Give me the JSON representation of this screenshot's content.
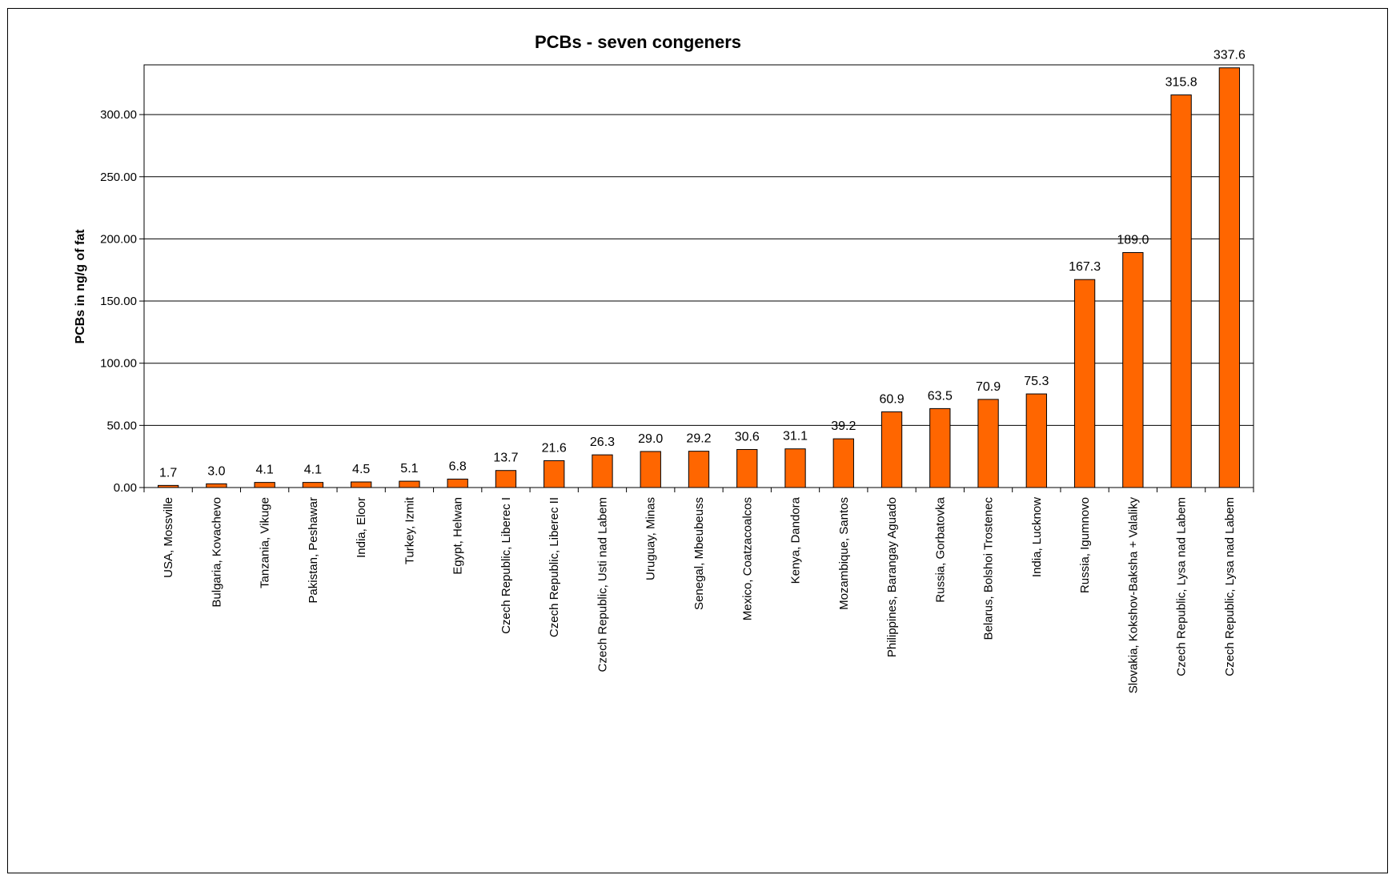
{
  "chart_data": {
    "type": "bar",
    "title": "PCBs - seven congeners",
    "xlabel": "",
    "ylabel": "PCBs in ng/g of fat",
    "ylim": [
      0,
      340
    ],
    "yticks": [
      0,
      50,
      100,
      150,
      200,
      250,
      300
    ],
    "ytick_labels": [
      "0.00",
      "50.00",
      "100.00",
      "150.00",
      "200.00",
      "250.00",
      "300.00"
    ],
    "grid": true,
    "legend": "none",
    "bar_color": "#FF6600",
    "categories": [
      "USA, Mossville",
      "Bulgaria, Kovachevo",
      "Tanzania, Vikuge",
      "Pakistan, Peshawar",
      "India, Eloor",
      "Turkey, Izmit",
      "Egypt, Helwan",
      "Czech Republic, Liberec I",
      "Czech Republic, Liberec II",
      "Czech Republic, Usti nad Labem",
      "Uruguay, Minas",
      "Senegal, Mbeubeuss",
      "Mexico, Coatzacoalcos",
      "Kenya, Dandora",
      "Mozambique, Santos",
      "Philippines, Barangay Aguado",
      "Russia, Gorbatovka",
      "Belarus, Bolshoi Trostenec",
      "India, Lucknow",
      "Russia, Igumnovo",
      "Slovakia, Kokshov-Baksha + Valaliky",
      "Czech Republic, Lysa nad Labem",
      "Czech Republic, Lysa nad Labem"
    ],
    "values": [
      1.7,
      3.0,
      4.1,
      4.1,
      4.5,
      5.1,
      6.8,
      13.7,
      21.6,
      26.3,
      29.0,
      29.2,
      30.6,
      31.1,
      39.2,
      60.9,
      63.5,
      70.9,
      75.3,
      167.3,
      189.0,
      315.8,
      337.6
    ],
    "data_labels": [
      "1.7",
      "3.0",
      "4.1",
      "4.1",
      "4.5",
      "5.1",
      "6.8",
      "13.7",
      "21.6",
      "26.3",
      "29.0",
      "29.2",
      "30.6",
      "31.1",
      "39.2",
      "60.9",
      "63.5",
      "70.9",
      "75.3",
      "167.3",
      "189.0",
      "315.8",
      "337.6"
    ]
  }
}
